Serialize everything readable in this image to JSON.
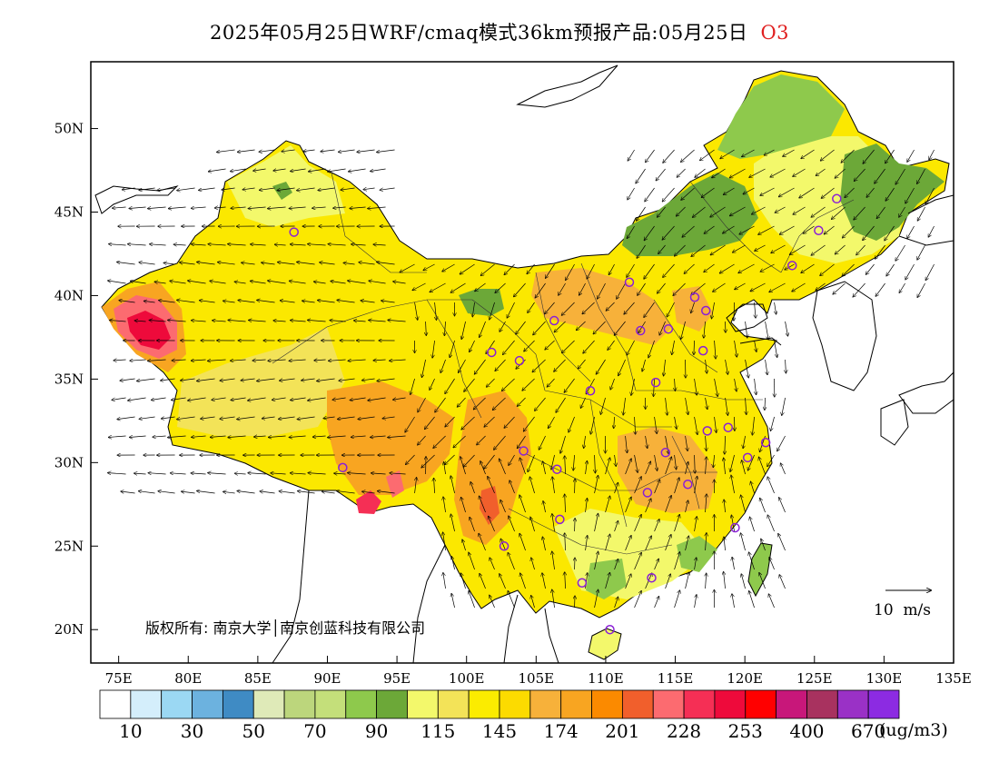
{
  "title": {
    "text": "2025年05月25日WRF/cmaq模式36km预报产品:05月25日",
    "pollutant": "O3"
  },
  "map": {
    "lon_range": [
      73,
      135
    ],
    "lat_range": [
      18,
      54
    ],
    "lon_ticks": [
      "75E",
      "80E",
      "85E",
      "90E",
      "95E",
      "100E",
      "105E",
      "110E",
      "115E",
      "120E",
      "125E",
      "130E",
      "135E"
    ],
    "lat_ticks": [
      "20N",
      "25N",
      "30N",
      "35N",
      "40N",
      "45N",
      "50N"
    ],
    "copyright": "版权所有: 南京大学│南京创蓝科技有限公司",
    "wind_reference": "10  m/s"
  },
  "legend": {
    "units": "(ug/m3)",
    "colors": [
      "#ffffff",
      "#d4eefb",
      "#9bd8f3",
      "#6cb2df",
      "#3f8bc4",
      "#dfeab8",
      "#bcd67c",
      "#c4df7a",
      "#8ec94c",
      "#6ca838",
      "#f3f86b",
      "#f3e358",
      "#fbec00",
      "#fcdb00",
      "#f7b13a",
      "#f8a521",
      "#fb8a00",
      "#f15f2c",
      "#fc6b70",
      "#f52f55",
      "#ee0a3b",
      "#ff0000",
      "#c8177a",
      "#a8325f",
      "#9a31c6",
      "#8c2be2"
    ],
    "labels": [
      "10",
      "30",
      "50",
      "70",
      "90",
      "115",
      "145",
      "174",
      "201",
      "228",
      "253",
      "400",
      "670"
    ]
  },
  "stations": {
    "marker_color": "#8a1fd6"
  }
}
